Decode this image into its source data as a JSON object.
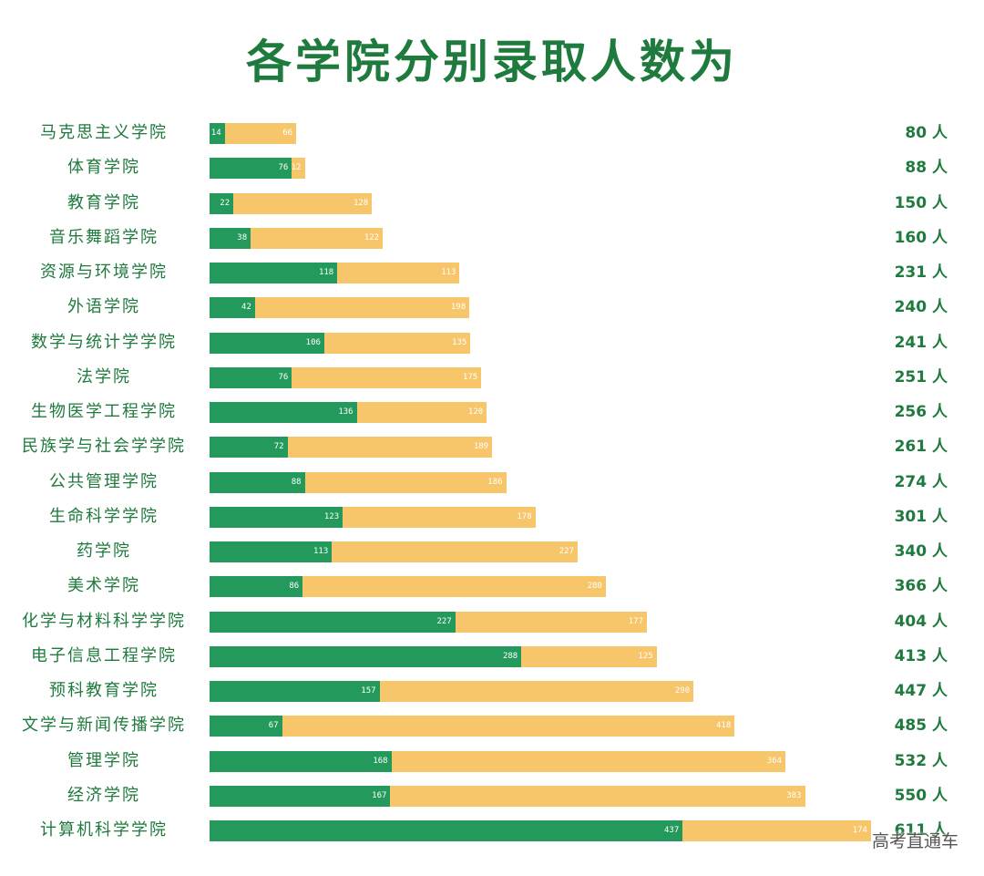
{
  "title": "各学院分别录取人数为",
  "watermark": "高考直通车",
  "unit": "人",
  "colors": {
    "green": "#239a5b",
    "yellow": "#f7c66a",
    "text": "#1f7a3d"
  },
  "chart_data": {
    "type": "bar",
    "orientation": "horizontal",
    "stacked": true,
    "title": "各学院分别录取人数为",
    "categories": [
      "马克思主义学院",
      "体育学院",
      "教育学院",
      "音乐舞蹈学院",
      "资源与环境学院",
      "外语学院",
      "数学与统计学学院",
      "法学院",
      "生物医学工程学院",
      "民族学与社会学学院",
      "公共管理学院",
      "生命科学学院",
      "药学院",
      "美术学院",
      "化学与材料科学学院",
      "电子信息工程学院",
      "预科教育学院",
      "文学与新闻传播学院",
      "管理学院",
      "经济学院",
      "计算机科学学院"
    ],
    "series": [
      {
        "name": "green",
        "color": "#239a5b",
        "values": [
          14,
          76,
          22,
          38,
          118,
          42,
          106,
          76,
          136,
          72,
          88,
          123,
          113,
          86,
          227,
          288,
          157,
          67,
          168,
          167,
          437
        ]
      },
      {
        "name": "yellow",
        "color": "#f7c66a",
        "values": [
          66,
          12,
          128,
          122,
          113,
          198,
          135,
          175,
          120,
          189,
          186,
          178,
          227,
          280,
          177,
          125,
          290,
          418,
          364,
          383,
          174
        ]
      }
    ],
    "totals": [
      80,
      88,
      150,
      160,
      231,
      240,
      241,
      251,
      256,
      261,
      274,
      301,
      340,
      366,
      404,
      413,
      447,
      485,
      532,
      550,
      611
    ],
    "total_labels": [
      "80 人",
      "88 人",
      "150 人",
      "160 人",
      "231 人",
      "240 人",
      "241 人",
      "251 人",
      "256 人",
      "261 人",
      "274 人",
      "301 人",
      "340 人",
      "366 人",
      "404 人",
      "413 人",
      "447 人",
      "485 人",
      "532 人",
      "550 人",
      "611 人"
    ],
    "xlabel": "",
    "ylabel": "",
    "grid": false,
    "legend": "none"
  }
}
